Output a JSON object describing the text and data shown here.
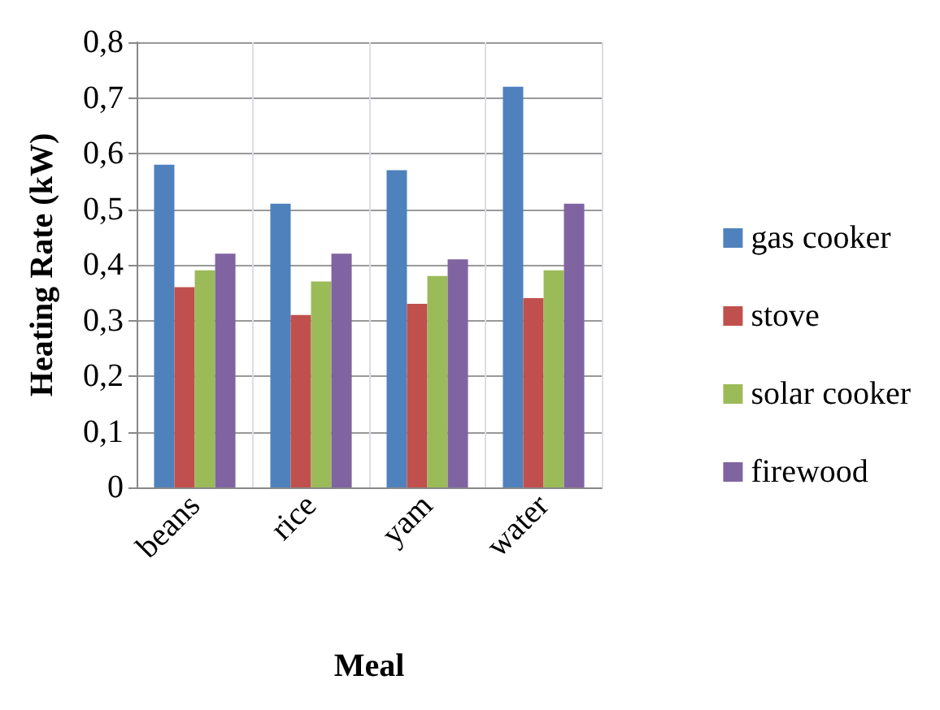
{
  "chart_data": {
    "type": "bar",
    "xlabel": "Meal",
    "ylabel": "Heating Rate (kW)",
    "categories": [
      "beans",
      "rice",
      "yam",
      "water"
    ],
    "series": [
      {
        "name": "gas cooker",
        "color": "#4f81bd",
        "values": [
          0.58,
          0.51,
          0.57,
          0.72
        ]
      },
      {
        "name": "stove",
        "color": "#c0504d",
        "values": [
          0.36,
          0.31,
          0.33,
          0.34
        ]
      },
      {
        "name": "solar cooker",
        "color": "#9bbb59",
        "values": [
          0.39,
          0.37,
          0.38,
          0.39
        ]
      },
      {
        "name": "firewood",
        "color": "#8064a2",
        "values": [
          0.42,
          0.42,
          0.41,
          0.51
        ]
      }
    ],
    "ylim": [
      0,
      0.8
    ],
    "yticks": [
      0,
      {
        "value": 0.1,
        "label": "0,1"
      },
      {
        "value": 0.2,
        "label": "0,2"
      },
      {
        "value": 0.3,
        "label": "0,3"
      },
      {
        "value": 0.4,
        "label": "0,4"
      },
      {
        "value": 0.5,
        "label": "0,5"
      },
      {
        "value": 0.6,
        "label": "0,6"
      },
      {
        "value": 0.7,
        "label": "0,7"
      },
      {
        "value": 0.8,
        "label": "0,8"
      }
    ],
    "grid": true,
    "legend": "right"
  }
}
